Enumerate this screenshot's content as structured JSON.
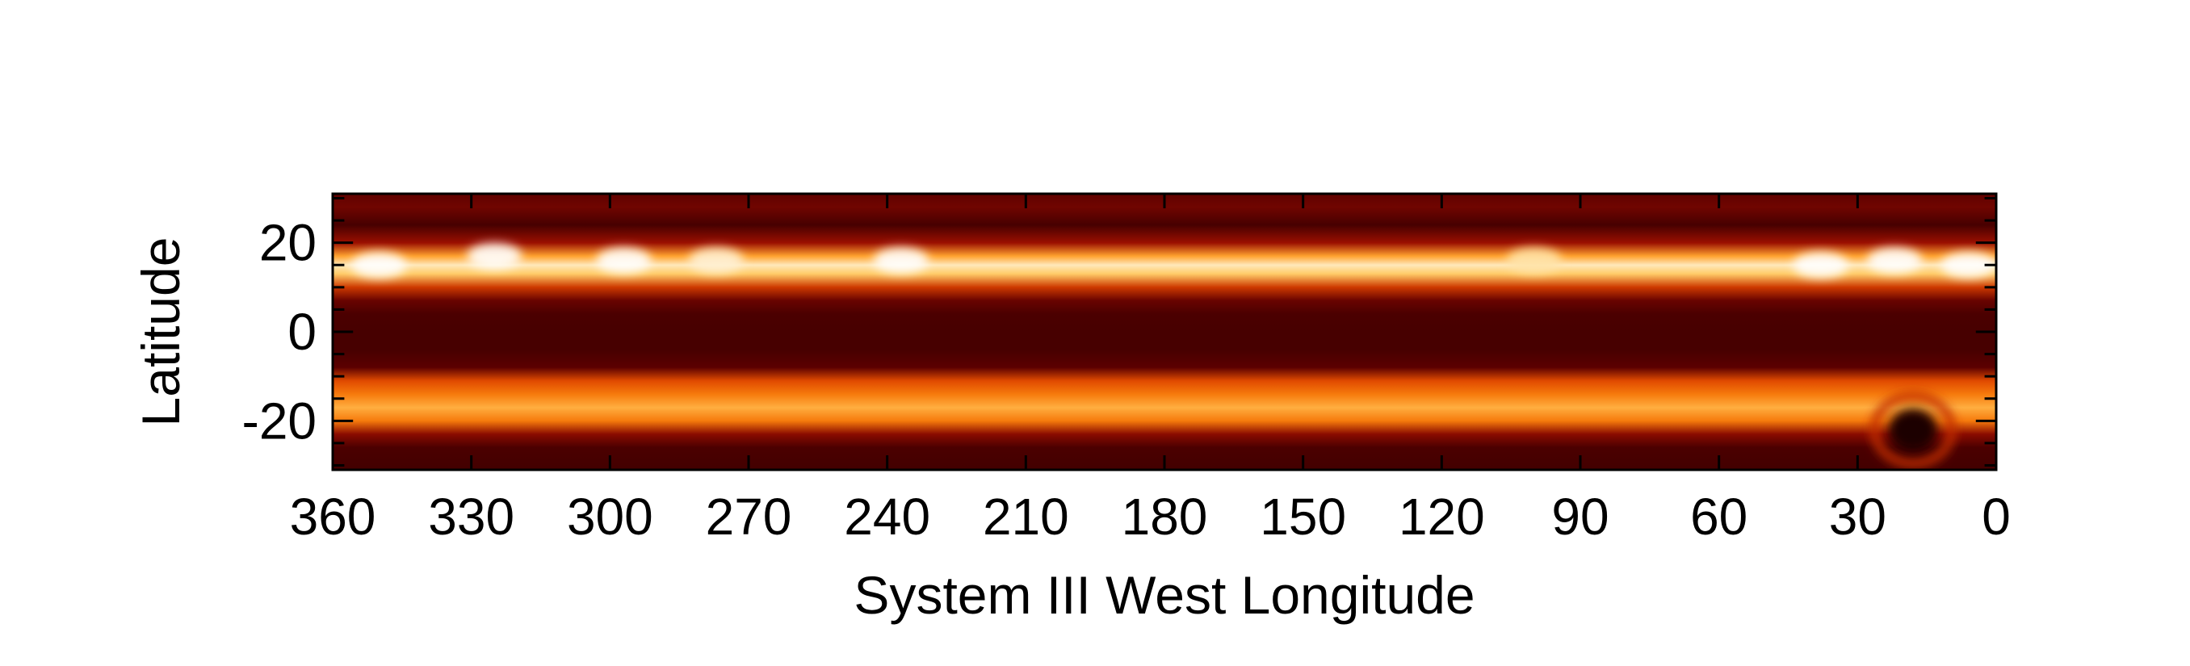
{
  "chart_data": {
    "type": "heatmap",
    "xlabel": "System III West Longitude",
    "ylabel": "Latitude",
    "xlim": [
      360,
      0
    ],
    "ylim": [
      -31,
      31
    ],
    "x_ticks": [
      360,
      330,
      300,
      270,
      240,
      210,
      180,
      150,
      120,
      90,
      60,
      30,
      0
    ],
    "y_ticks": [
      20,
      0,
      -20
    ],
    "x_tick_labels": [
      "360",
      "330",
      "300",
      "270",
      "240",
      "210",
      "180",
      "150",
      "120",
      "90",
      "60",
      "30",
      "0"
    ],
    "y_tick_labels": [
      "20",
      "0",
      "-20"
    ],
    "colormap": [
      "#150000",
      "#5a0000",
      "#a01000",
      "#e04a00",
      "#ff8c10",
      "#ffd070",
      "#ffffff"
    ],
    "latitude_profile": {
      "latitude": [
        31,
        28,
        24,
        20,
        17,
        15,
        13,
        10,
        7,
        4,
        0,
        -4,
        -8,
        -11,
        -14,
        -17,
        -20,
        -23,
        -26,
        -31
      ],
      "brightness": [
        0.18,
        0.22,
        0.12,
        0.32,
        0.72,
        0.92,
        0.82,
        0.45,
        0.2,
        0.13,
        0.12,
        0.12,
        0.17,
        0.5,
        0.62,
        0.75,
        0.62,
        0.28,
        0.13,
        0.11
      ]
    },
    "bright_spots": [
      {
        "longitude": 350,
        "latitude": 15,
        "brightness": 1.0
      },
      {
        "longitude": 325,
        "latitude": 17,
        "brightness": 1.0
      },
      {
        "longitude": 297,
        "latitude": 16,
        "brightness": 1.0
      },
      {
        "longitude": 277,
        "latitude": 16,
        "brightness": 0.95
      },
      {
        "longitude": 237,
        "latitude": 16,
        "brightness": 1.0
      },
      {
        "longitude": 100,
        "latitude": 16,
        "brightness": 0.9
      },
      {
        "longitude": 38,
        "latitude": 15,
        "brightness": 1.0
      },
      {
        "longitude": 22,
        "latitude": 16,
        "brightness": 1.0
      },
      {
        "longitude": 6,
        "latitude": 15,
        "brightness": 1.0
      }
    ],
    "dark_features": [
      {
        "longitude": 18,
        "latitude": -22,
        "label": ""
      }
    ]
  }
}
